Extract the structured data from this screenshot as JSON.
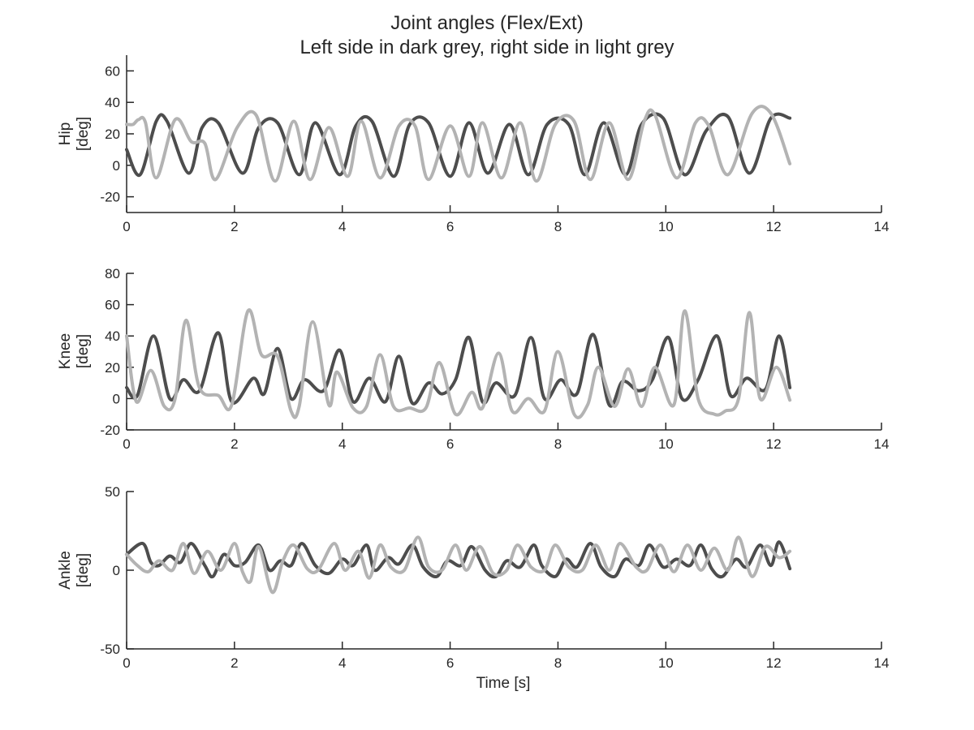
{
  "chart_data": [
    {
      "type": "line",
      "title": "Joint angles (Flex/Ext)",
      "subtitle": "Left side in dark grey, right side in light grey",
      "ylabel": "Hip",
      "ylabel_unit": "[deg]",
      "xlim": [
        0,
        14
      ],
      "ylim": [
        -30,
        70
      ],
      "xticks": [
        0,
        2,
        4,
        6,
        8,
        10,
        12,
        14
      ],
      "yticks": [
        -20,
        0,
        20,
        40,
        60
      ],
      "grid": false,
      "colors": {
        "left": "#4d4d4d",
        "right": "#b3b3b3"
      },
      "series": [
        {
          "side": "left",
          "x": [
            0.0,
            0.25,
            0.55,
            0.75,
            1.15,
            1.4,
            1.7,
            2.15,
            2.45,
            2.8,
            3.2,
            3.5,
            3.95,
            4.25,
            4.55,
            4.95,
            5.25,
            5.6,
            6.0,
            6.35,
            6.7,
            7.1,
            7.45,
            7.8,
            8.2,
            8.5,
            8.85,
            9.25,
            9.55,
            9.95,
            10.35,
            10.75,
            11.15,
            11.55,
            11.95,
            12.3
          ],
          "y": [
            10,
            -6,
            28,
            28,
            -5,
            24,
            27,
            -5,
            24,
            27,
            -6,
            27,
            -6,
            25,
            28,
            -7,
            26,
            27,
            -7,
            27,
            -5,
            26,
            -6,
            26,
            26,
            -6,
            27,
            -6,
            26,
            30,
            -6,
            22,
            31,
            -5,
            30,
            30
          ]
        },
        {
          "side": "right",
          "x": [
            0.0,
            0.12,
            0.22,
            0.35,
            0.55,
            0.9,
            1.2,
            1.45,
            1.65,
            2.05,
            2.4,
            2.75,
            3.1,
            3.4,
            3.75,
            4.1,
            4.35,
            4.7,
            5.05,
            5.35,
            5.6,
            6.0,
            6.35,
            6.6,
            6.95,
            7.3,
            7.6,
            7.95,
            8.3,
            8.6,
            8.95,
            9.3,
            9.6,
            9.8,
            10.2,
            10.55,
            10.8,
            11.15,
            11.6,
            11.95,
            12.3
          ],
          "y": [
            26,
            26,
            29,
            27,
            -8,
            29,
            15,
            14,
            -9,
            24,
            32,
            -10,
            28,
            -9,
            24,
            -7,
            28,
            -8,
            25,
            25,
            -9,
            25,
            -7,
            27,
            -8,
            27,
            -10,
            26,
            28,
            -9,
            27,
            -9,
            28,
            32,
            -8,
            27,
            25,
            -6,
            33,
            33,
            1
          ]
        }
      ]
    },
    {
      "type": "line",
      "ylabel": "Knee",
      "ylabel_unit": "[deg]",
      "xlim": [
        0,
        14
      ],
      "ylim": [
        -20,
        80
      ],
      "xticks": [
        0,
        2,
        4,
        6,
        8,
        10,
        12,
        14
      ],
      "yticks": [
        -20,
        0,
        20,
        40,
        60,
        80
      ],
      "grid": false,
      "colors": {
        "left": "#4d4d4d",
        "right": "#b3b3b3"
      },
      "series": [
        {
          "side": "left",
          "x": [
            0.0,
            0.2,
            0.5,
            0.8,
            1.05,
            1.35,
            1.7,
            1.95,
            2.35,
            2.55,
            2.8,
            3.05,
            3.3,
            3.65,
            3.95,
            4.2,
            4.5,
            4.8,
            5.05,
            5.3,
            5.6,
            5.85,
            6.1,
            6.35,
            6.6,
            6.85,
            7.2,
            7.5,
            7.75,
            8.05,
            8.35,
            8.65,
            8.95,
            9.2,
            9.5,
            9.75,
            10.05,
            10.3,
            10.6,
            10.95,
            11.2,
            11.5,
            11.85,
            12.1,
            12.3
          ],
          "y": [
            7,
            2,
            40,
            0,
            12,
            5,
            42,
            -2,
            13,
            3,
            32,
            0,
            12,
            5,
            31,
            -2,
            13,
            -2,
            27,
            -3,
            10,
            3,
            12,
            39,
            -2,
            10,
            2,
            39,
            0,
            12,
            3,
            41,
            -4,
            11,
            5,
            12,
            39,
            0,
            12,
            40,
            2,
            13,
            6,
            40,
            7
          ]
        },
        {
          "side": "right",
          "x": [
            0.0,
            0.18,
            0.45,
            0.7,
            0.9,
            1.1,
            1.35,
            1.7,
            1.95,
            2.25,
            2.5,
            2.8,
            3.05,
            3.2,
            3.45,
            3.75,
            3.9,
            4.2,
            4.45,
            4.7,
            4.95,
            5.25,
            5.55,
            5.8,
            6.1,
            6.4,
            6.6,
            6.9,
            7.15,
            7.45,
            7.75,
            8.0,
            8.3,
            8.55,
            8.75,
            9.05,
            9.3,
            9.55,
            9.8,
            10.15,
            10.35,
            10.6,
            10.9,
            11.1,
            11.35,
            11.55,
            11.75,
            12.05,
            12.3
          ],
          "y": [
            40,
            -2,
            18,
            -5,
            0,
            50,
            7,
            2,
            -4,
            56,
            28,
            27,
            -8,
            -5,
            49,
            -4,
            17,
            -6,
            -5,
            28,
            -5,
            -6,
            -6,
            23,
            -10,
            4,
            -6,
            29,
            -8,
            0,
            -8,
            30,
            -10,
            -4,
            20,
            -5,
            19,
            -5,
            20,
            -4,
            56,
            0,
            -10,
            -8,
            0,
            55,
            0,
            20,
            -1
          ]
        }
      ]
    },
    {
      "type": "line",
      "xlabel": "Time [s]",
      "ylabel": "Ankle",
      "ylabel_unit": "[deg]",
      "xlim": [
        0,
        14
      ],
      "ylim": [
        -50,
        50
      ],
      "xticks": [
        0,
        2,
        4,
        6,
        8,
        10,
        12,
        14
      ],
      "yticks": [
        -50,
        0,
        50
      ],
      "grid": false,
      "colors": {
        "left": "#4d4d4d",
        "right": "#b3b3b3"
      },
      "series": [
        {
          "side": "left",
          "x": [
            0.0,
            0.3,
            0.45,
            0.6,
            0.8,
            1.0,
            1.2,
            1.45,
            1.6,
            1.8,
            2.0,
            2.2,
            2.45,
            2.65,
            2.85,
            3.05,
            3.25,
            3.5,
            3.75,
            4.0,
            4.2,
            4.45,
            4.6,
            4.85,
            5.05,
            5.3,
            5.5,
            5.75,
            5.95,
            6.2,
            6.4,
            6.65,
            6.85,
            7.05,
            7.3,
            7.55,
            7.7,
            7.95,
            8.15,
            8.35,
            8.6,
            8.8,
            9.05,
            9.25,
            9.5,
            9.7,
            9.95,
            10.2,
            10.45,
            10.65,
            10.85,
            11.05,
            11.3,
            11.5,
            11.75,
            11.95,
            12.1,
            12.3
          ],
          "y": [
            10,
            17,
            5,
            3,
            9,
            5,
            17,
            3,
            -4,
            10,
            3,
            5,
            16,
            0,
            6,
            3,
            17,
            3,
            -2,
            7,
            3,
            16,
            0,
            8,
            4,
            16,
            2,
            -4,
            6,
            3,
            15,
            0,
            -4,
            6,
            2,
            16,
            3,
            -4,
            7,
            2,
            17,
            2,
            -4,
            7,
            3,
            16,
            2,
            7,
            3,
            16,
            1,
            -4,
            7,
            2,
            16,
            3,
            18,
            1
          ]
        },
        {
          "side": "right",
          "x": [
            0.0,
            0.2,
            0.4,
            0.6,
            0.85,
            1.05,
            1.25,
            1.5,
            1.75,
            2.0,
            2.15,
            2.3,
            2.45,
            2.7,
            2.9,
            3.1,
            3.35,
            3.55,
            3.85,
            4.05,
            4.3,
            4.5,
            4.7,
            4.9,
            5.15,
            5.4,
            5.6,
            5.85,
            6.1,
            6.3,
            6.55,
            6.8,
            7.05,
            7.25,
            7.5,
            7.75,
            7.95,
            8.2,
            8.45,
            8.7,
            8.95,
            9.15,
            9.45,
            9.65,
            9.9,
            10.15,
            10.4,
            10.65,
            10.9,
            11.15,
            11.35,
            11.6,
            11.85,
            12.1,
            12.3
          ],
          "y": [
            10,
            3,
            -1,
            6,
            0,
            17,
            -2,
            12,
            0,
            17,
            -1,
            -7,
            15,
            -14,
            6,
            16,
            1,
            0,
            17,
            0,
            12,
            -5,
            16,
            2,
            0,
            21,
            2,
            0,
            16,
            0,
            15,
            -2,
            0,
            16,
            2,
            0,
            16,
            2,
            0,
            16,
            0,
            17,
            2,
            0,
            16,
            -1,
            16,
            0,
            14,
            0,
            21,
            -4,
            15,
            8,
            12
          ]
        }
      ]
    }
  ]
}
